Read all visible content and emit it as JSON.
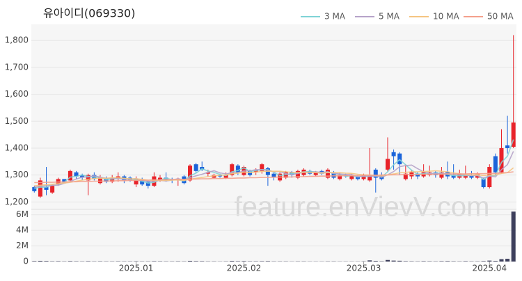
{
  "chart_data": {
    "type": "candlestick",
    "title": "유아이디(069330)",
    "watermark": "feature.enVievV.com",
    "categories": [
      null,
      null,
      null,
      null,
      null,
      null,
      null,
      null,
      null,
      null,
      null,
      null,
      null,
      null,
      null,
      null,
      null,
      "2025.01",
      null,
      null,
      null,
      null,
      null,
      null,
      null,
      null,
      null,
      null,
      null,
      null,
      null,
      null,
      null,
      null,
      null,
      "2025.02",
      null,
      null,
      null,
      null,
      null,
      null,
      null,
      null,
      null,
      null,
      null,
      null,
      null,
      null,
      null,
      null,
      null,
      null,
      null,
      "2025.03",
      null,
      null,
      null,
      null,
      null,
      null,
      null,
      null,
      null,
      null,
      null,
      null,
      null,
      null,
      null,
      null,
      null,
      null,
      null,
      null,
      "2025.04",
      null,
      null,
      null,
      null
    ],
    "up_color": "#e8232a",
    "down_color": "#1b64da",
    "open": [
      1255,
      1220,
      1255,
      1235,
      1265,
      1285,
      1280,
      1310,
      1300,
      1280,
      1300,
      1270,
      1290,
      1275,
      1285,
      1295,
      1290,
      1265,
      1280,
      1275,
      1260,
      1280,
      1290,
      1285,
      1280,
      1295,
      1280,
      1340,
      1330,
      1305,
      1290,
      1300,
      1290,
      1300,
      1335,
      1300,
      1315,
      1310,
      1315,
      1325,
      1305,
      1280,
      1290,
      1310,
      1290,
      1300,
      1315,
      1300,
      1315,
      1290,
      1310,
      1285,
      1300,
      1285,
      1295,
      1285,
      1280,
      1320,
      1300,
      1320,
      1385,
      1380,
      1285,
      1295,
      1305,
      1295,
      1300,
      1310,
      1290,
      1310,
      1300,
      1290,
      1290,
      1300,
      1290,
      1285,
      1255,
      1370,
      1310,
      1410,
      1405
    ],
    "high": [
      1260,
      1290,
      1330,
      1265,
      1290,
      1285,
      1320,
      1315,
      1305,
      1305,
      1310,
      1300,
      1295,
      1300,
      1310,
      1300,
      1295,
      1295,
      1290,
      1280,
      1310,
      1300,
      1310,
      1290,
      1290,
      1300,
      1340,
      1345,
      1350,
      1320,
      1305,
      1305,
      1310,
      1345,
      1340,
      1335,
      1320,
      1325,
      1345,
      1330,
      1310,
      1310,
      1315,
      1315,
      1320,
      1325,
      1320,
      1315,
      1320,
      1325,
      1315,
      1310,
      1305,
      1305,
      1300,
      1305,
      1400,
      1325,
      1310,
      1440,
      1395,
      1385,
      1340,
      1320,
      1310,
      1340,
      1335,
      1315,
      1330,
      1350,
      1340,
      1320,
      1335,
      1315,
      1310,
      1290,
      1340,
      1380,
      1470,
      1520,
      1820
    ],
    "low": [
      1235,
      1215,
      1225,
      1230,
      1260,
      1270,
      1275,
      1285,
      1280,
      1225,
      1280,
      1265,
      1270,
      1270,
      1275,
      1270,
      1275,
      1255,
      1260,
      1250,
      1255,
      1275,
      1275,
      1270,
      1260,
      1265,
      1275,
      1310,
      1315,
      1295,
      1285,
      1290,
      1285,
      1295,
      1300,
      1295,
      1295,
      1300,
      1305,
      1260,
      1280,
      1275,
      1285,
      1290,
      1285,
      1295,
      1300,
      1295,
      1300,
      1285,
      1285,
      1280,
      1290,
      1280,
      1280,
      1280,
      1275,
      1235,
      1280,
      1310,
      1320,
      1300,
      1280,
      1285,
      1285,
      1290,
      1295,
      1290,
      1285,
      1285,
      1285,
      1285,
      1285,
      1285,
      1285,
      1250,
      1250,
      1300,
      1305,
      1380,
      1400
    ],
    "close": [
      1240,
      1280,
      1245,
      1260,
      1285,
      1275,
      1315,
      1295,
      1290,
      1300,
      1285,
      1290,
      1275,
      1290,
      1295,
      1280,
      1280,
      1285,
      1265,
      1260,
      1295,
      1290,
      1280,
      1280,
      1285,
      1270,
      1335,
      1315,
      1320,
      1310,
      1300,
      1295,
      1300,
      1340,
      1310,
      1330,
      1300,
      1320,
      1340,
      1300,
      1290,
      1305,
      1310,
      1300,
      1315,
      1320,
      1305,
      1310,
      1305,
      1320,
      1290,
      1300,
      1295,
      1300,
      1285,
      1300,
      1300,
      1290,
      1285,
      1360,
      1370,
      1340,
      1305,
      1310,
      1295,
      1310,
      1310,
      1300,
      1310,
      1295,
      1290,
      1305,
      1300,
      1290,
      1305,
      1255,
      1330,
      1310,
      1400,
      1400,
      1495
    ],
    "volume": [
      60000,
      90000,
      70000,
      40000,
      50000,
      30000,
      60000,
      40000,
      30000,
      50000,
      30000,
      40000,
      30000,
      30000,
      40000,
      30000,
      30000,
      40000,
      30000,
      30000,
      50000,
      40000,
      30000,
      30000,
      40000,
      30000,
      90000,
      60000,
      50000,
      30000,
      30000,
      20000,
      30000,
      80000,
      50000,
      60000,
      40000,
      40000,
      50000,
      60000,
      30000,
      30000,
      30000,
      20000,
      30000,
      30000,
      20000,
      20000,
      20000,
      30000,
      30000,
      20000,
      20000,
      20000,
      20000,
      30000,
      150000,
      80000,
      40000,
      200000,
      120000,
      100000,
      50000,
      40000,
      30000,
      50000,
      40000,
      30000,
      50000,
      60000,
      40000,
      30000,
      50000,
      30000,
      30000,
      60000,
      120000,
      80000,
      300000,
      350000,
      6400000
    ],
    "ma_series": [
      {
        "name": "3 MA",
        "color": "#7fd3d6",
        "values": [
          1250,
          1255,
          1255,
          1262,
          1263,
          1273,
          1292,
          1295,
          1300,
          1295,
          1292,
          1292,
          1283,
          1285,
          1287,
          1288,
          1285,
          1282,
          1277,
          1270,
          1273,
          1282,
          1288,
          1283,
          1282,
          1278,
          1297,
          1307,
          1323,
          1315,
          1310,
          1302,
          1298,
          1312,
          1317,
          1327,
          1313,
          1317,
          1320,
          1320,
          1310,
          1298,
          1302,
          1305,
          1308,
          1312,
          1313,
          1312,
          1307,
          1312,
          1305,
          1303,
          1295,
          1298,
          1293,
          1295,
          1295,
          1297,
          1292,
          1312,
          1338,
          1357,
          1338,
          1318,
          1303,
          1305,
          1305,
          1307,
          1307,
          1302,
          1298,
          1297,
          1298,
          1298,
          1300,
          1283,
          1297,
          1298,
          1347,
          1370,
          1432
        ]
      },
      {
        "name": "5 MA",
        "color": "#b6a3c9",
        "values": [
          1255,
          1258,
          1260,
          1262,
          1262,
          1269,
          1276,
          1285,
          1292,
          1293,
          1297,
          1292,
          1288,
          1288,
          1287,
          1284,
          1284,
          1287,
          1281,
          1276,
          1277,
          1280,
          1278,
          1281,
          1287,
          1281,
          1290,
          1297,
          1303,
          1310,
          1316,
          1308,
          1304,
          1309,
          1309,
          1315,
          1316,
          1320,
          1320,
          1318,
          1312,
          1313,
          1305,
          1301,
          1306,
          1310,
          1310,
          1312,
          1310,
          1312,
          1306,
          1304,
          1302,
          1302,
          1294,
          1296,
          1296,
          1296,
          1292,
          1301,
          1313,
          1331,
          1335,
          1337,
          1324,
          1312,
          1306,
          1305,
          1305,
          1305,
          1303,
          1302,
          1300,
          1298,
          1298,
          1289,
          1297,
          1293,
          1320,
          1339,
          1388
        ]
      },
      {
        "name": "10 MA",
        "color": "#f5c582",
        "values": [
          1260,
          1262,
          1264,
          1266,
          1268,
          1270,
          1273,
          1277,
          1281,
          1284,
          1287,
          1288,
          1288,
          1290,
          1290,
          1288,
          1286,
          1286,
          1284,
          1281,
          1280,
          1280,
          1280,
          1281,
          1282,
          1280,
          1284,
          1288,
          1291,
          1294,
          1297,
          1299,
          1300,
          1305,
          1307,
          1311,
          1309,
          1311,
          1313,
          1314,
          1314,
          1314,
          1312,
          1310,
          1309,
          1311,
          1310,
          1309,
          1307,
          1309,
          1309,
          1309,
          1307,
          1306,
          1303,
          1301,
          1300,
          1299,
          1297,
          1301,
          1304,
          1308,
          1310,
          1312,
          1312,
          1313,
          1314,
          1316,
          1314,
          1312,
          1308,
          1305,
          1302,
          1300,
          1301,
          1298,
          1300,
          1300,
          1306,
          1309,
          1327
        ]
      },
      {
        "name": "50 MA",
        "color": "#f4a08c",
        "values": [
          1272,
          1272,
          1273,
          1273,
          1274,
          1274,
          1275,
          1275,
          1276,
          1276,
          1277,
          1277,
          1278,
          1278,
          1279,
          1279,
          1280,
          1280,
          1281,
          1281,
          1282,
          1282,
          1283,
          1283,
          1284,
          1284,
          1285,
          1285,
          1286,
          1286,
          1287,
          1287,
          1288,
          1288,
          1289,
          1289,
          1290,
          1290,
          1291,
          1291,
          1292,
          1292,
          1293,
          1293,
          1294,
          1294,
          1295,
          1295,
          1296,
          1296,
          1297,
          1297,
          1298,
          1298,
          1298,
          1299,
          1299,
          1299,
          1300,
          1300,
          1301,
          1301,
          1302,
          1302,
          1302,
          1303,
          1303,
          1303,
          1303,
          1304,
          1304,
          1304,
          1304,
          1305,
          1305,
          1305,
          1306,
          1306,
          1308,
          1309,
          1312
        ]
      }
    ],
    "ylim": [
      1175,
      1860
    ],
    "yticks": [
      {
        "value": 1200,
        "label": "1,200"
      },
      {
        "value": 1300,
        "label": "1,300"
      },
      {
        "value": 1400,
        "label": "1,400"
      },
      {
        "value": 1500,
        "label": "1,500"
      },
      {
        "value": 1600,
        "label": "1,600"
      },
      {
        "value": 1700,
        "label": "1,700"
      },
      {
        "value": 1800,
        "label": "1,800"
      }
    ],
    "volume_ylim": [
      0,
      6600000
    ],
    "volume_yticks": [
      0,
      {
        "value": 2000000,
        "label": "2M"
      },
      {
        "value": 4000000,
        "label": "4M"
      },
      {
        "value": 6000000,
        "label": "6M"
      }
    ],
    "volume_color": "#3d3f5c",
    "grid": true
  }
}
